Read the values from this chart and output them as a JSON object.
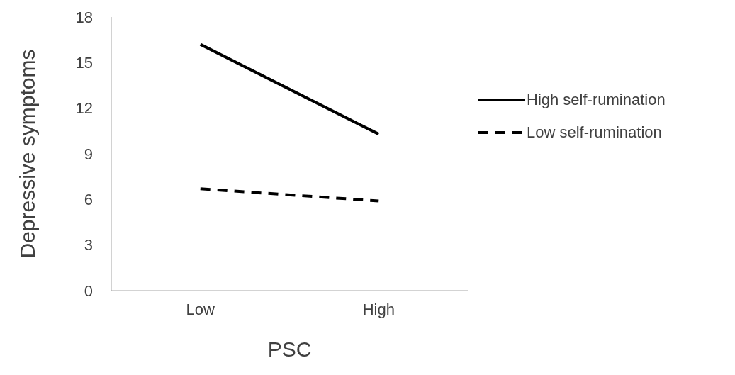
{
  "chart_data": {
    "type": "line",
    "xlabel": "PSC",
    "ylabel": "Depressive symptoms",
    "categories": [
      "Low",
      "High"
    ],
    "series": [
      {
        "name": "High self-rumination",
        "color": "#000000",
        "line_style": "solid",
        "values": [
          16.2,
          10.3
        ]
      },
      {
        "name": "Low self-rumination",
        "color": "#000000",
        "line_style": "dashed",
        "values": [
          6.7,
          5.9
        ]
      }
    ],
    "ylim": [
      0,
      18
    ],
    "yticks": [
      0,
      3,
      6,
      9,
      12,
      15,
      18
    ],
    "grid": false,
    "legend": "right",
    "marker": "none"
  }
}
